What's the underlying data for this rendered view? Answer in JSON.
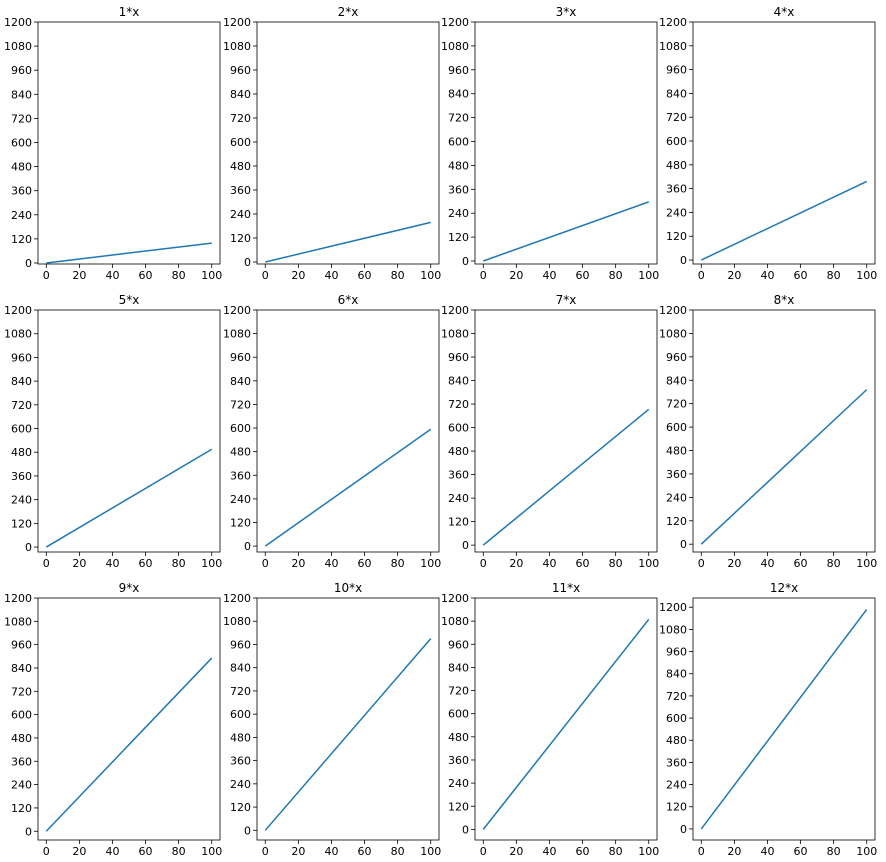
{
  "line_color": "#1f77b4",
  "chart_data": [
    {
      "type": "line",
      "title": "1*x",
      "x": [
        0,
        100
      ],
      "y": [
        0,
        99
      ],
      "xticks": [
        0,
        20,
        40,
        60,
        80,
        100
      ],
      "yticks": [
        0,
        120,
        240,
        360,
        480,
        600,
        720,
        840,
        960,
        1080,
        1200
      ],
      "xlim": [
        -5,
        105
      ],
      "ylim": [
        -5,
        1200
      ],
      "grid": false
    },
    {
      "type": "line",
      "title": "2*x",
      "x": [
        0,
        100
      ],
      "y": [
        0,
        198
      ],
      "xticks": [
        0,
        20,
        40,
        60,
        80,
        100
      ],
      "yticks": [
        0,
        120,
        240,
        360,
        480,
        600,
        720,
        840,
        960,
        1080,
        1200
      ],
      "xlim": [
        -5,
        105
      ],
      "ylim": [
        -10,
        1200
      ],
      "grid": false
    },
    {
      "type": "line",
      "title": "3*x",
      "x": [
        0,
        100
      ],
      "y": [
        0,
        297
      ],
      "xticks": [
        0,
        20,
        40,
        60,
        80,
        100
      ],
      "yticks": [
        0,
        120,
        240,
        360,
        480,
        600,
        720,
        840,
        960,
        1080,
        1200
      ],
      "xlim": [
        -5,
        105
      ],
      "ylim": [
        -15,
        1200
      ],
      "grid": false
    },
    {
      "type": "line",
      "title": "4*x",
      "x": [
        0,
        100
      ],
      "y": [
        0,
        396
      ],
      "xticks": [
        0,
        20,
        40,
        60,
        80,
        100
      ],
      "yticks": [
        0,
        120,
        240,
        360,
        480,
        600,
        720,
        840,
        960,
        1080,
        1200
      ],
      "xlim": [
        -5,
        105
      ],
      "ylim": [
        -20,
        1200
      ],
      "grid": false
    },
    {
      "type": "line",
      "title": "5*x",
      "x": [
        0,
        100
      ],
      "y": [
        0,
        495
      ],
      "xticks": [
        0,
        20,
        40,
        60,
        80,
        100
      ],
      "yticks": [
        0,
        120,
        240,
        360,
        480,
        600,
        720,
        840,
        960,
        1080,
        1200
      ],
      "xlim": [
        -5,
        105
      ],
      "ylim": [
        -25,
        1200
      ],
      "grid": false
    },
    {
      "type": "line",
      "title": "6*x",
      "x": [
        0,
        100
      ],
      "y": [
        0,
        594
      ],
      "xticks": [
        0,
        20,
        40,
        60,
        80,
        100
      ],
      "yticks": [
        0,
        120,
        240,
        360,
        480,
        600,
        720,
        840,
        960,
        1080,
        1200
      ],
      "xlim": [
        -5,
        105
      ],
      "ylim": [
        -30,
        1200
      ],
      "grid": false
    },
    {
      "type": "line",
      "title": "7*x",
      "x": [
        0,
        100
      ],
      "y": [
        0,
        693
      ],
      "xticks": [
        0,
        20,
        40,
        60,
        80,
        100
      ],
      "yticks": [
        0,
        120,
        240,
        360,
        480,
        600,
        720,
        840,
        960,
        1080,
        1200
      ],
      "xlim": [
        -5,
        105
      ],
      "ylim": [
        -35,
        1200
      ],
      "grid": false
    },
    {
      "type": "line",
      "title": "8*x",
      "x": [
        0,
        100
      ],
      "y": [
        0,
        792
      ],
      "xticks": [
        0,
        20,
        40,
        60,
        80,
        100
      ],
      "yticks": [
        0,
        120,
        240,
        360,
        480,
        600,
        720,
        840,
        960,
        1080,
        1200
      ],
      "xlim": [
        -5,
        105
      ],
      "ylim": [
        -40,
        1200
      ],
      "grid": false
    },
    {
      "type": "line",
      "title": "9*x",
      "x": [
        0,
        100
      ],
      "y": [
        0,
        891
      ],
      "xticks": [
        0,
        20,
        40,
        60,
        80,
        100
      ],
      "yticks": [
        0,
        120,
        240,
        360,
        480,
        600,
        720,
        840,
        960,
        1080,
        1200
      ],
      "xlim": [
        -5,
        105
      ],
      "ylim": [
        -45,
        1200
      ],
      "grid": false
    },
    {
      "type": "line",
      "title": "10*x",
      "x": [
        0,
        100
      ],
      "y": [
        0,
        990
      ],
      "xticks": [
        0,
        20,
        40,
        60,
        80,
        100
      ],
      "yticks": [
        0,
        120,
        240,
        360,
        480,
        600,
        720,
        840,
        960,
        1080,
        1200
      ],
      "xlim": [
        -5,
        105
      ],
      "ylim": [
        -50,
        1200
      ],
      "grid": false
    },
    {
      "type": "line",
      "title": "11*x",
      "x": [
        0,
        100
      ],
      "y": [
        0,
        1089
      ],
      "xticks": [
        0,
        20,
        40,
        60,
        80,
        100
      ],
      "yticks": [
        0,
        120,
        240,
        360,
        480,
        600,
        720,
        840,
        960,
        1080,
        1200
      ],
      "xlim": [
        -5,
        105
      ],
      "ylim": [
        -55,
        1200
      ],
      "grid": false
    },
    {
      "type": "line",
      "title": "12*x",
      "x": [
        0,
        100
      ],
      "y": [
        0,
        1188
      ],
      "xticks": [
        0,
        20,
        40,
        60,
        80,
        100
      ],
      "yticks": [
        0,
        120,
        240,
        360,
        480,
        600,
        720,
        840,
        960,
        1080,
        1200
      ],
      "xlim": [
        -5,
        105
      ],
      "ylim": [
        -60,
        1250
      ],
      "grid": false
    }
  ]
}
